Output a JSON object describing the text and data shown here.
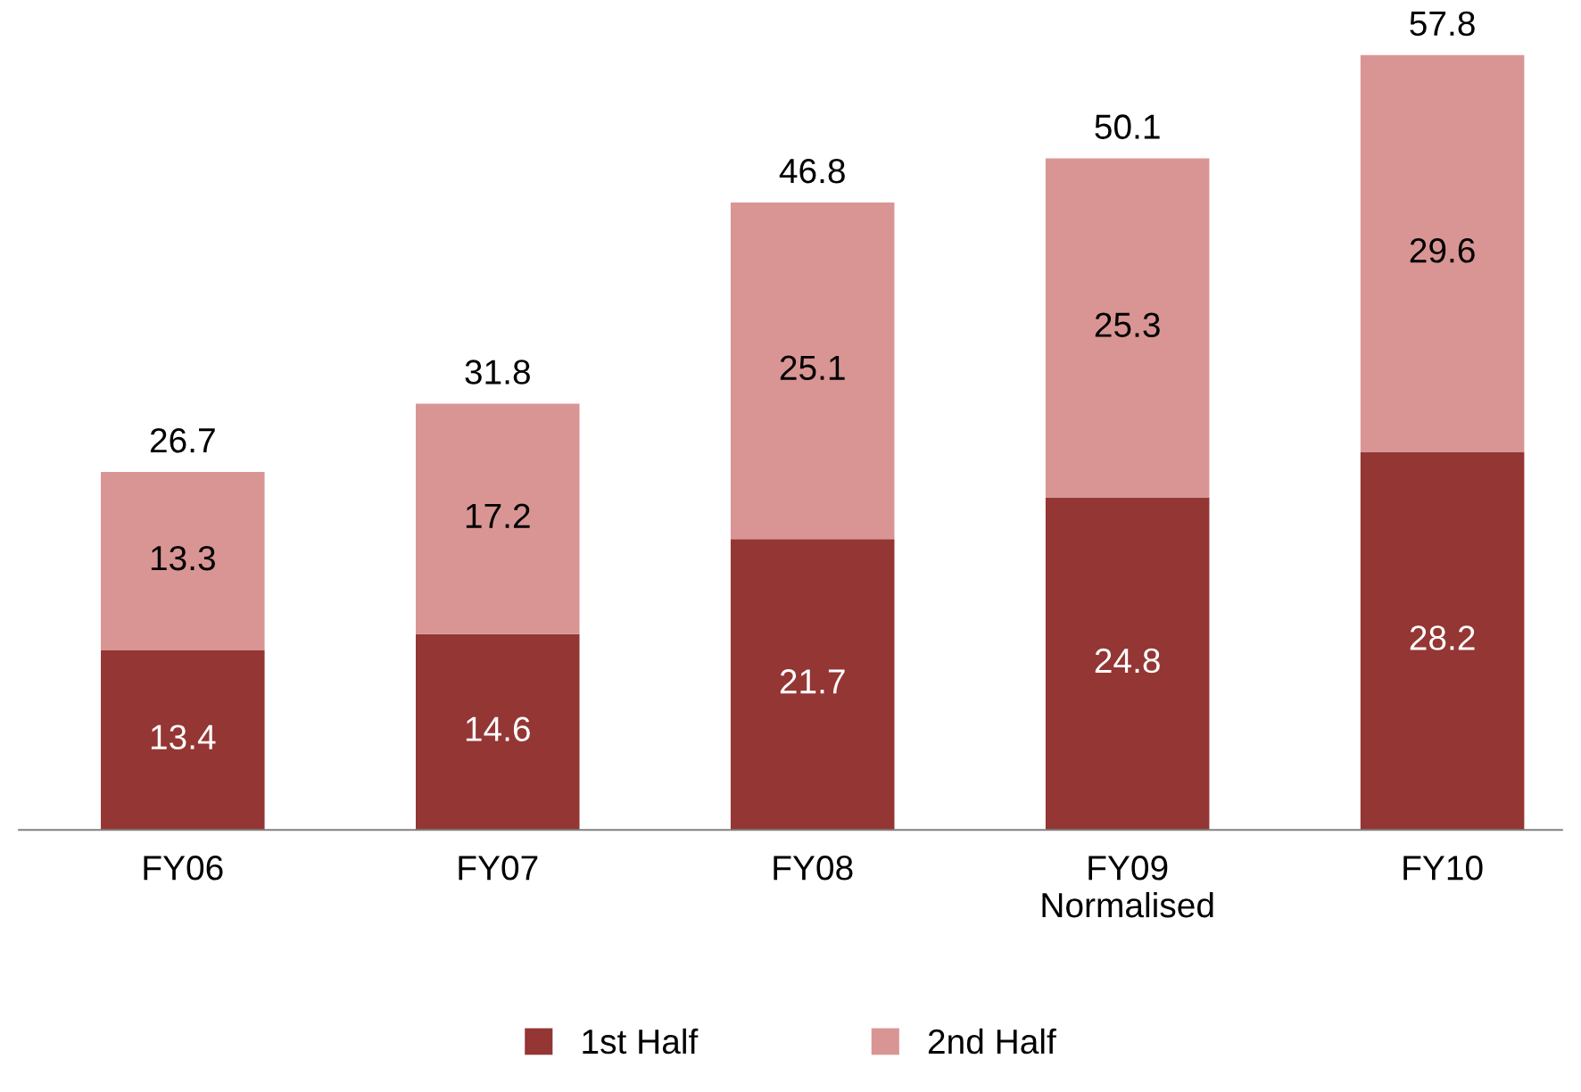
{
  "chart_data": {
    "type": "bar",
    "stacked": true,
    "data_labels": true,
    "legend": "bottom",
    "categories": [
      "FY06",
      "FY07",
      "FY08",
      "FY09\nNormalised",
      "FY10"
    ],
    "series": [
      {
        "name": "1st Half",
        "color": "#943634",
        "values": [
          13.4,
          14.6,
          21.7,
          24.8,
          28.2
        ]
      },
      {
        "name": "2nd Half",
        "color": "#d99594",
        "values": [
          13.3,
          17.2,
          25.1,
          25.3,
          29.6
        ]
      }
    ],
    "totals": [
      "26.7",
      "31.8",
      "46.8",
      "50.1",
      "57.8"
    ]
  }
}
